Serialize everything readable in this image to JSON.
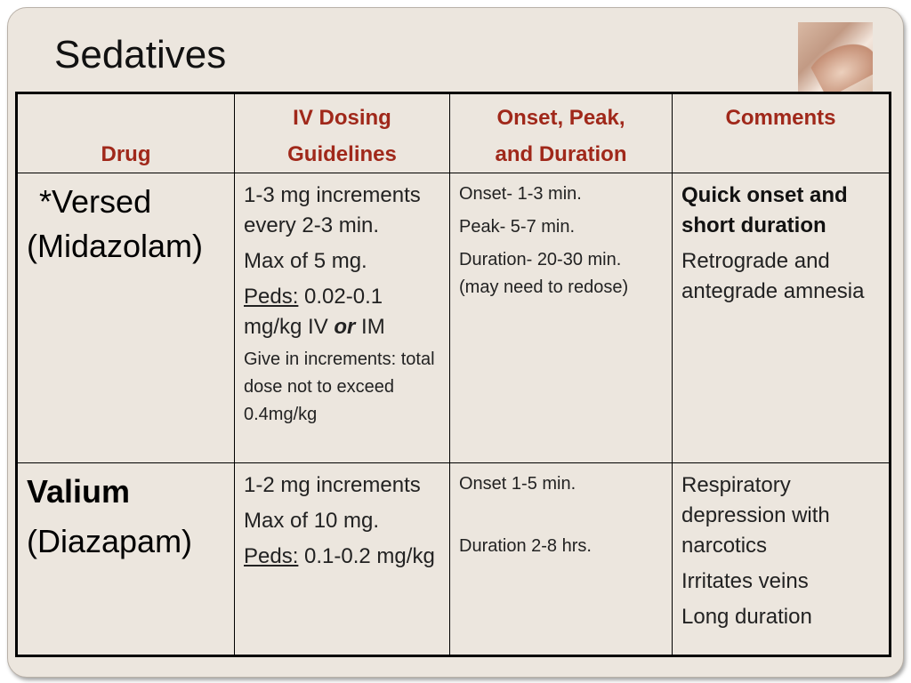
{
  "title": "Sedatives",
  "table": {
    "headers": {
      "drug": "Drug",
      "dosing_line1": "IV Dosing",
      "dosing_line2": "Guidelines",
      "onset_line1": "Onset, Peak,",
      "onset_line2": "and Duration",
      "comments": "Comments"
    },
    "rows": [
      {
        "drug": "*Versed",
        "generic": "(Midazolam)",
        "dosing": {
          "increments": "1-3 mg increments every 2-3 min.",
          "max": "Max of 5 mg.",
          "peds_label": "Peds:",
          "peds_value_a": " 0.02-0.1 mg/kg IV ",
          "peds_or": "or",
          "peds_value_b": "  IM",
          "note": "Give in increments: total dose not to exceed 0.4mg/kg"
        },
        "timing": {
          "onset": "Onset- 1-3 min.",
          "peak": "Peak- 5-7 min.",
          "duration": "Duration- 20-30 min. (may need to redose)"
        },
        "comments": {
          "bold": "Quick onset and short duration",
          "amnesia": "Retrograde and antegrade amnesia"
        }
      },
      {
        "drug": "Valium",
        "generic": "(Diazapam)",
        "dosing": {
          "increments": "1-2 mg increments",
          "max": "Max of 10 mg.",
          "peds_label": "Peds:",
          "peds_value": " 0.1-0.2 mg/kg"
        },
        "timing": {
          "onset": "Onset 1-5 min.",
          "duration": "Duration 2-8 hrs."
        },
        "comments": {
          "resp": "Respiratory depression with narcotics",
          "veins": "Irritates veins",
          "long": "Long duration"
        }
      }
    ]
  }
}
